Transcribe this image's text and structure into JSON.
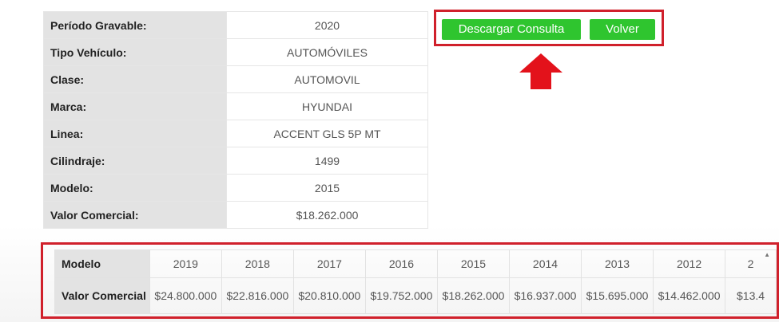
{
  "details": [
    {
      "label": "Período Gravable:",
      "value": "2020"
    },
    {
      "label": "Tipo Vehículo:",
      "value": "AUTOMÓVILES"
    },
    {
      "label": "Clase:",
      "value": "AUTOMOVIL"
    },
    {
      "label": "Marca:",
      "value": "HYUNDAI"
    },
    {
      "label": "Linea:",
      "value": "ACCENT GLS 5P MT"
    },
    {
      "label": "Cilindraje:",
      "value": "1499"
    },
    {
      "label": "Modelo:",
      "value": "2015"
    },
    {
      "label": "Valor Comercial:",
      "value": "$18.262.000"
    }
  ],
  "actions": {
    "download_label": "Descargar Consulta",
    "back_label": "Volver"
  },
  "year_table": {
    "row1_label": "Modelo",
    "row2_label": "Valor Comercial",
    "years": [
      "2019",
      "2018",
      "2017",
      "2016",
      "2015",
      "2014",
      "2013",
      "2012",
      "2"
    ],
    "values": [
      "$24.800.000",
      "$22.816.000",
      "$20.810.000",
      "$19.752.000",
      "$18.262.000",
      "$16.937.000",
      "$15.695.000",
      "$14.462.000",
      "$13.4"
    ]
  },
  "icons": {
    "arrow": "arrow-up-icon",
    "arrow_color": "#e3121b",
    "highlight_color": "#d0202b",
    "button_color": "#2fc52f"
  }
}
